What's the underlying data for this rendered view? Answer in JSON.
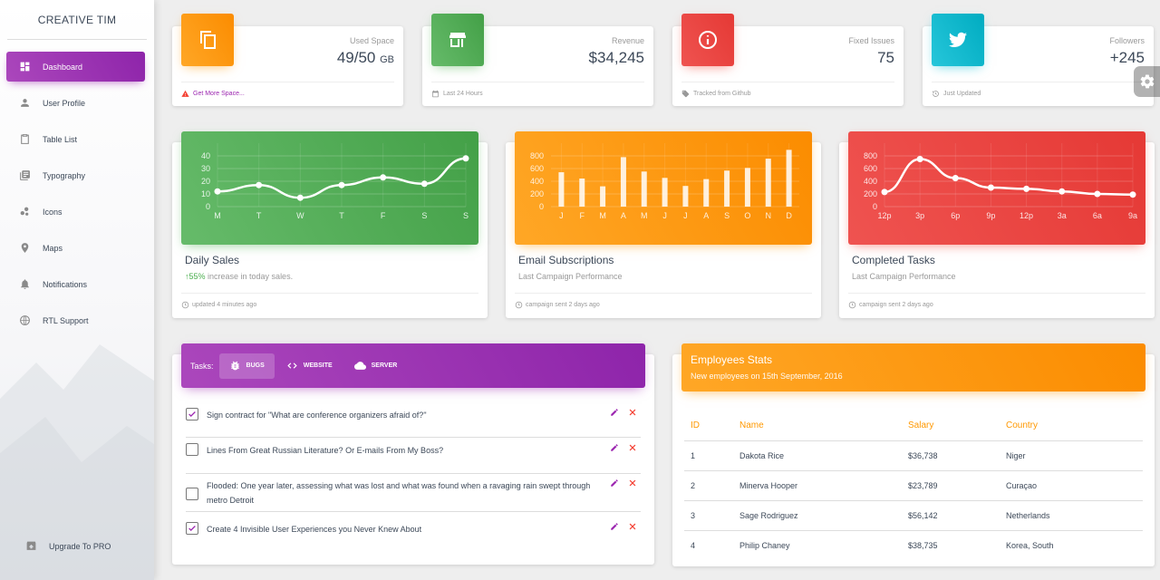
{
  "brand": "CREATIVE TIM",
  "nav": [
    {
      "label": "Dashboard",
      "icon": "dashboard-icon",
      "active": true
    },
    {
      "label": "User Profile",
      "icon": "person-icon"
    },
    {
      "label": "Table List",
      "icon": "clipboard-icon"
    },
    {
      "label": "Typography",
      "icon": "library-books-icon"
    },
    {
      "label": "Icons",
      "icon": "bubble-chart-icon"
    },
    {
      "label": "Maps",
      "icon": "location-pin-icon"
    },
    {
      "label": "Notifications",
      "icon": "bell-icon"
    },
    {
      "label": "RTL Support",
      "icon": "language-icon"
    }
  ],
  "upgrade": {
    "label": "Upgrade To PRO",
    "icon": "unarchive-icon"
  },
  "stats": [
    {
      "category": "Used Space",
      "value": "49/50",
      "unit": "GB",
      "footer": "Get More Space...",
      "color": "#fb8c00",
      "icon": "copy-icon",
      "footer_icon": "warning-icon"
    },
    {
      "category": "Revenue",
      "value": "$34,245",
      "unit": "",
      "footer": "Last 24 Hours",
      "color": "#43a047",
      "icon": "store-icon",
      "footer_icon": "calendar-icon"
    },
    {
      "category": "Fixed Issues",
      "value": "75",
      "unit": "",
      "footer": "Tracked from Github",
      "color": "#e53935",
      "icon": "info-icon",
      "footer_icon": "tag-icon"
    },
    {
      "category": "Followers",
      "value": "+245",
      "unit": "",
      "footer": "Just Updated",
      "color": "#00acc1",
      "icon": "twitter-icon",
      "footer_icon": "update-icon"
    }
  ],
  "charts": [
    {
      "title": "Daily Sales",
      "subtitle_highlight": "55%",
      "subtitle": " increase in today sales.",
      "footer": "updated 4 minutes ago"
    },
    {
      "title": "Email Subscriptions",
      "subtitle_highlight": "",
      "subtitle": "Last Campaign Performance",
      "footer": "campaign sent 2 days ago"
    },
    {
      "title": "Completed Tasks",
      "subtitle_highlight": "",
      "subtitle": "Last Campaign Performance",
      "footer": "campaign sent 2 days ago"
    }
  ],
  "chart_data": [
    {
      "type": "line",
      "categories": [
        "M",
        "T",
        "W",
        "T",
        "F",
        "S",
        "S"
      ],
      "values": [
        12,
        17,
        7,
        17,
        23,
        18,
        38
      ],
      "yticks": [
        0,
        10,
        20,
        30,
        40
      ],
      "ylim": [
        0,
        50
      ],
      "grid": true,
      "color": "#4caf50"
    },
    {
      "type": "bar",
      "categories": [
        "J",
        "F",
        "M",
        "A",
        "M",
        "J",
        "J",
        "A",
        "S",
        "O",
        "N",
        "D"
      ],
      "values": [
        542,
        443,
        320,
        780,
        553,
        453,
        326,
        434,
        568,
        610,
        756,
        895
      ],
      "yticks": [
        0,
        200,
        400,
        600,
        800
      ],
      "ylim": [
        0,
        1000
      ],
      "grid": true,
      "color": "#ff9800"
    },
    {
      "type": "line",
      "categories": [
        "12p",
        "3p",
        "6p",
        "9p",
        "12p",
        "3a",
        "6a",
        "9a"
      ],
      "values": [
        230,
        750,
        450,
        300,
        280,
        240,
        200,
        190
      ],
      "yticks": [
        0,
        200,
        400,
        600,
        800
      ],
      "ylim": [
        0,
        1000
      ],
      "grid": true,
      "color": "#e53935"
    }
  ],
  "tasks": {
    "label": "Tasks:",
    "tabs": [
      {
        "label": "BUGS",
        "icon": "bug-icon",
        "active": true
      },
      {
        "label": "WEBSITE",
        "icon": "code-icon"
      },
      {
        "label": "SERVER",
        "icon": "cloud-icon"
      }
    ],
    "items": [
      {
        "text": "Sign contract for \"What are conference organizers afraid of?\"",
        "checked": true
      },
      {
        "text": "Lines From Great Russian Literature? Or E-mails From My Boss?",
        "checked": false
      },
      {
        "text": "Flooded: One year later, assessing what was lost and what was found when a ravaging rain swept through metro Detroit",
        "checked": false
      },
      {
        "text": "Create 4 Invisible User Experiences you Never Knew About",
        "checked": true
      }
    ]
  },
  "employees": {
    "title": "Employees Stats",
    "subtitle": "New employees on 15th September, 2016",
    "columns": [
      "ID",
      "Name",
      "Salary",
      "Country"
    ],
    "rows": [
      [
        "1",
        "Dakota Rice",
        "$36,738",
        "Niger"
      ],
      [
        "2",
        "Minerva Hooper",
        "$23,789",
        "Curaçao"
      ],
      [
        "3",
        "Sage Rodriguez",
        "$56,142",
        "Netherlands"
      ],
      [
        "4",
        "Philip Chaney",
        "$38,735",
        "Korea, South"
      ]
    ]
  }
}
